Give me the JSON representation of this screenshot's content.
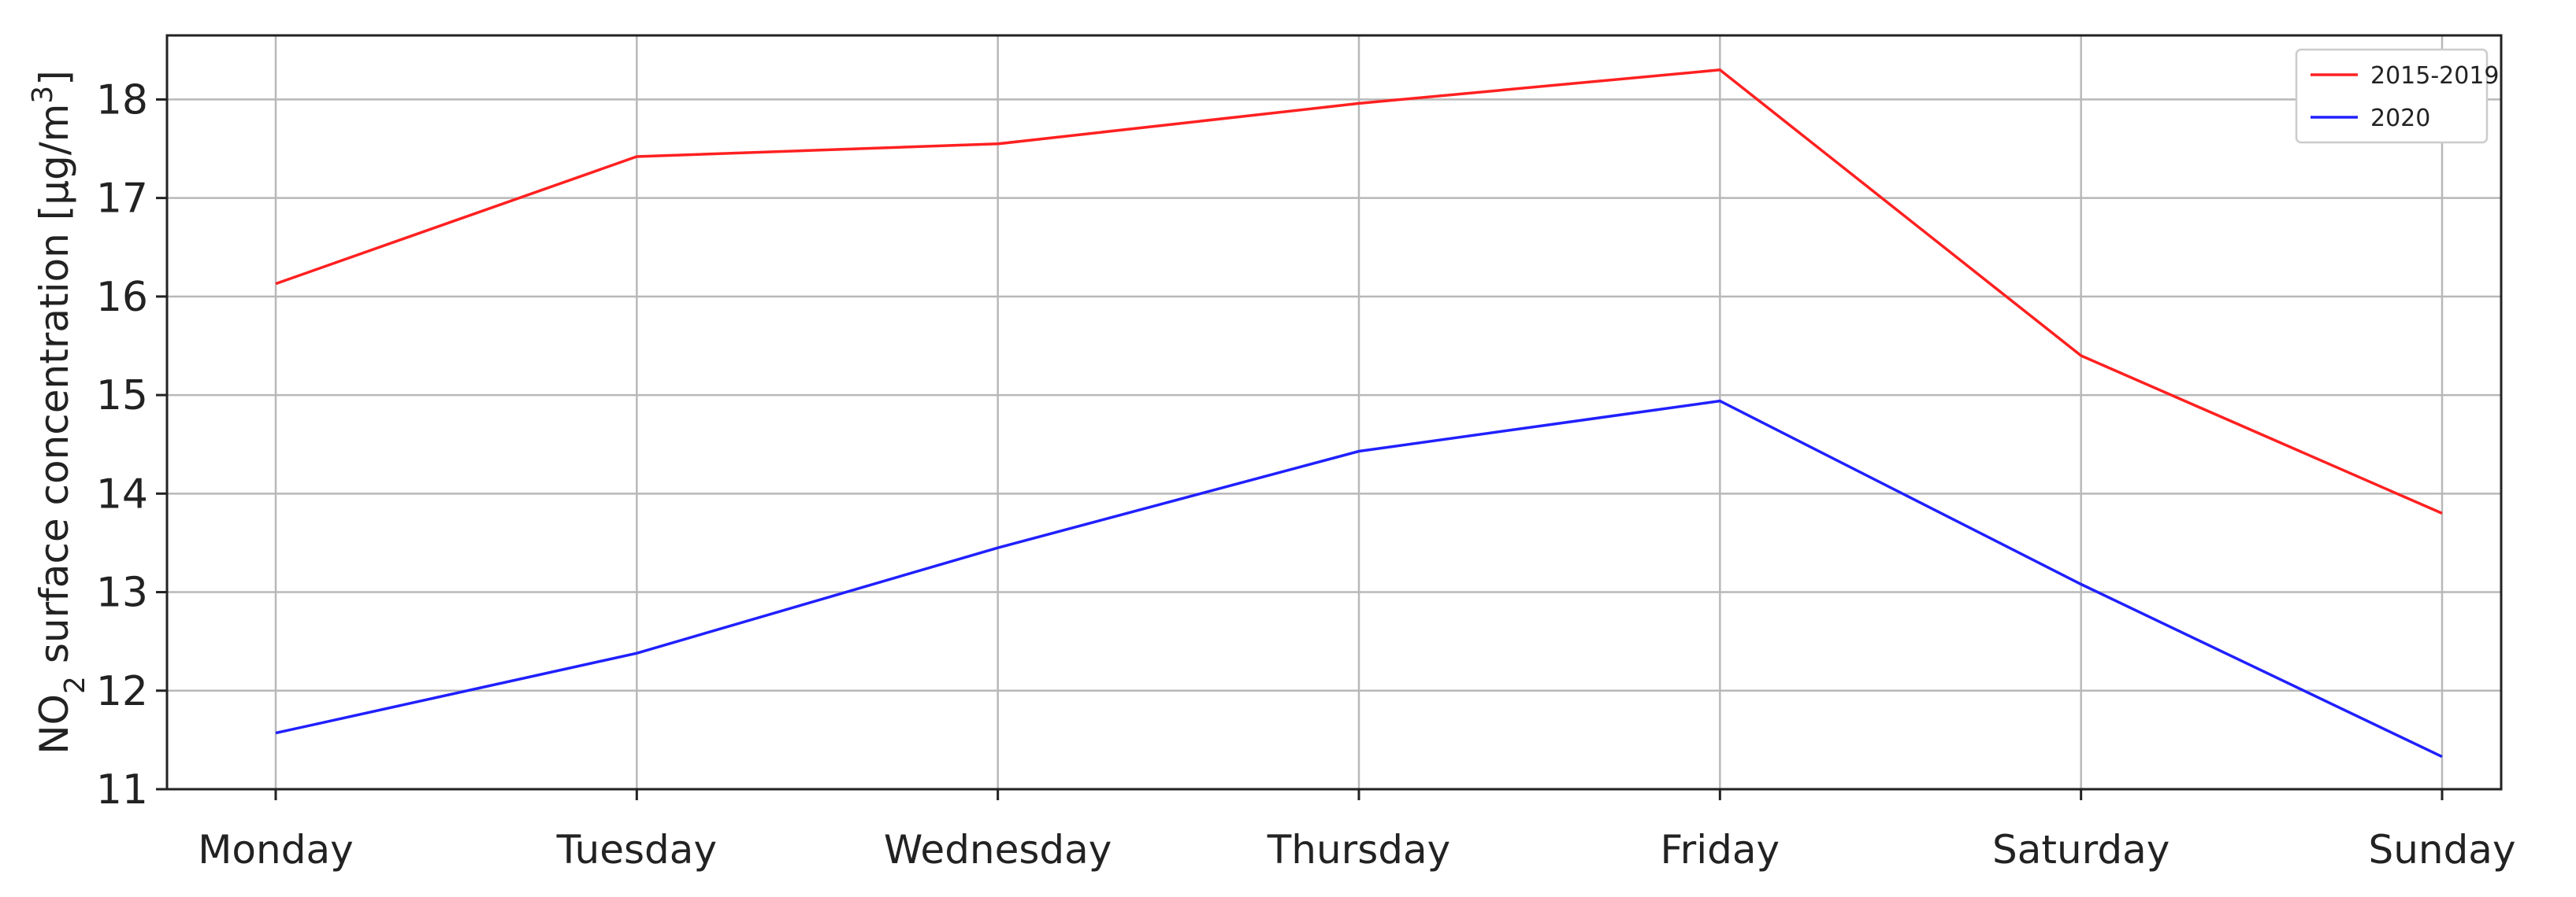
{
  "chart_data": {
    "type": "line",
    "categories": [
      "Monday",
      "Tuesday",
      "Wednesday",
      "Thursday",
      "Friday",
      "Saturday",
      "Sunday"
    ],
    "series": [
      {
        "name": "2015-2019",
        "color": "#ff2020",
        "values": [
          16.13,
          17.42,
          17.55,
          17.96,
          18.3,
          15.4,
          13.8
        ]
      },
      {
        "name": "2020",
        "color": "#2020ff",
        "values": [
          11.57,
          12.38,
          13.45,
          14.43,
          14.94,
          13.08,
          11.33
        ]
      }
    ],
    "ylabel": {
      "prefix": "NO",
      "subscript": "2",
      "middle": " surface concentration [µg/m",
      "superscript": "3",
      "suffix": "]"
    },
    "ylim": [
      11,
      18.65
    ],
    "yticks": [
      11,
      12,
      13,
      14,
      15,
      16,
      17,
      18
    ],
    "grid": true,
    "legend_position": "top-right"
  }
}
